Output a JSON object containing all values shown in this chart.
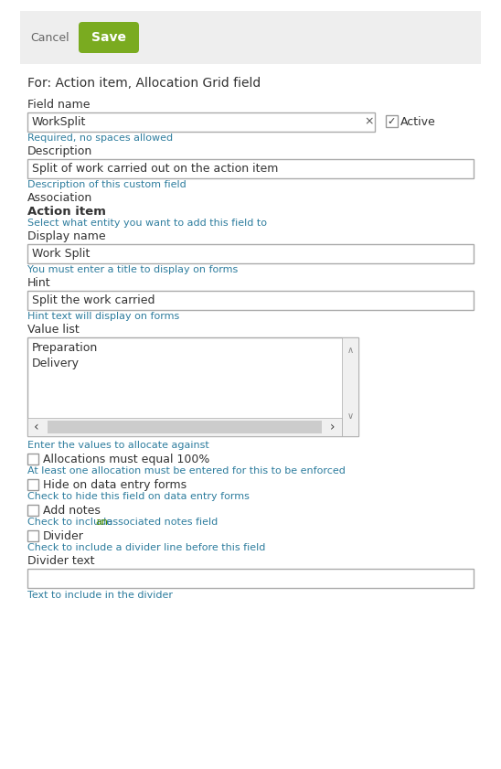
{
  "bg_color": "#ffffff",
  "header_bg": "#eeeeee",
  "cancel_text": "Cancel",
  "save_text": "Save",
  "save_bg": "#7aab20",
  "save_fg": "#ffffff",
  "title": "For: Action item, Allocation Grid field",
  "field_name_label": "Field name",
  "field_name_value": "WorkSplit",
  "field_name_hint": "Required, no spaces allowed",
  "active_label": "Active",
  "description_label": "Description",
  "description_value": "Split of work carried out on the action item",
  "description_hint": "Description of this custom field",
  "association_label": "Association",
  "association_value": "Action item",
  "association_hint": "Select what entity you want to add this field to",
  "display_name_label": "Display name",
  "display_name_value": "Work Split",
  "display_name_hint": "You must enter a title to display on forms",
  "hint_label": "Hint",
  "hint_value": "Split the work carried",
  "hint_hint": "Hint text will display on forms",
  "value_list_label": "Value list",
  "value_list_items": [
    "Preparation",
    "Delivery"
  ],
  "value_list_hint": "Enter the values to allocate against",
  "cb1_label": "Allocations must equal 100%",
  "cb1_hint": "At least one allocation must be entered for this to be enforced",
  "cb2_label": "Hide on data entry forms",
  "cb2_hint": "Check to hide this field on data entry forms",
  "cb3_label": "Add notes",
  "cb3_hint_pre": "Check to include ",
  "cb3_hint_link": "an",
  "cb3_hint_post": " associated notes field",
  "cb4_label": "Divider",
  "cb4_hint": "Check to include a divider line before this field",
  "divider_text_label": "Divider text",
  "divider_text_hint": "Text to include in the divider",
  "label_color": "#333333",
  "hint_color": "#2e7d9e",
  "link_color": "#4a8a00",
  "border_color": "#aaaaaa",
  "scrollbar_color": "#cccccc",
  "scrollbar_bg": "#e8e8e8",
  "arrow_color": "#888888"
}
